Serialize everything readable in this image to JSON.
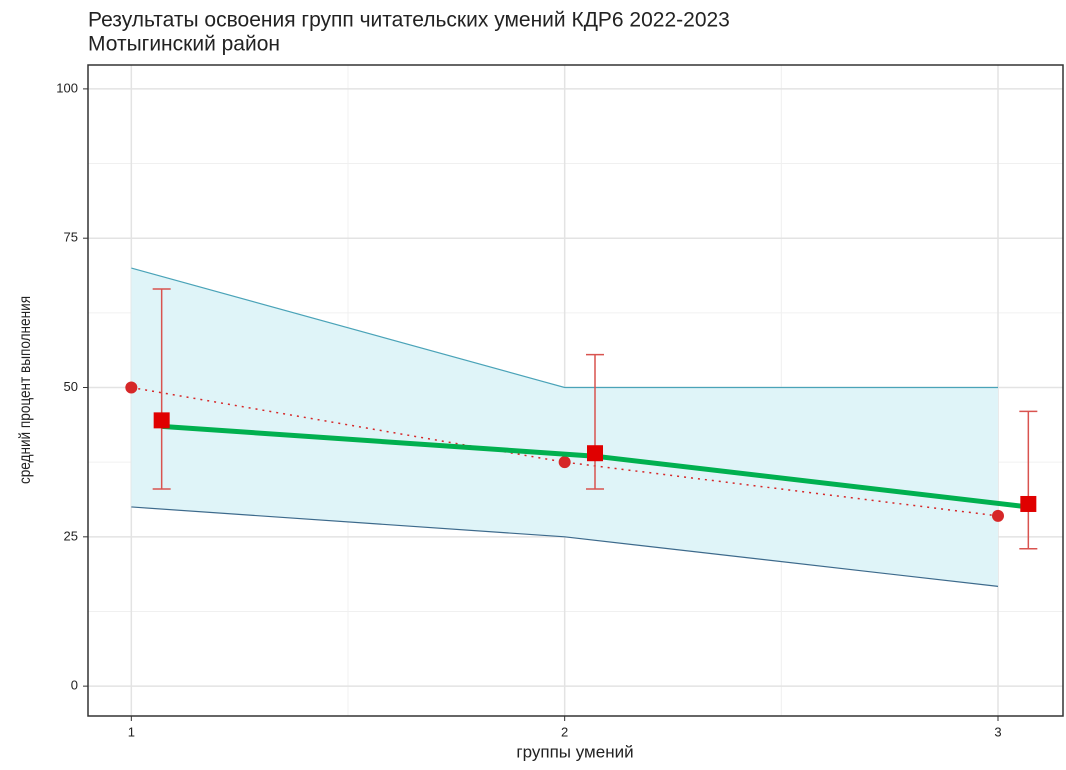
{
  "chart_data": {
    "type": "line",
    "title": "Результаты освоения групп читательских умений КДР6 2022-2023",
    "subtitle": "Мотыгинский район",
    "xlabel": "группы умений",
    "ylabel": "средний процент выполнения",
    "xlim": [
      0.9,
      3.15
    ],
    "ylim": [
      -5,
      104
    ],
    "xticks": [
      1,
      2,
      3
    ],
    "yticks": [
      0,
      25,
      50,
      75,
      100
    ],
    "xminor": [
      1.5,
      2.5
    ],
    "yminor": [
      12.5,
      37.5,
      62.5,
      87.5
    ],
    "grid": true,
    "ribbon": {
      "x": [
        1,
        2,
        3
      ],
      "upper": [
        70,
        50,
        50
      ],
      "lower": [
        30,
        25,
        16.7
      ],
      "color": "#dff4f8",
      "upper_color": "#4aa3b8",
      "lower_color": "#3d6a8c"
    },
    "series": [
      {
        "color": "#d62728",
        "line": "dotted",
        "marker": "circle",
        "x": [
          1,
          2,
          3
        ],
        "values": [
          50,
          37.5,
          28.5
        ]
      },
      {
        "color": "#00b04f",
        "line": "solid",
        "x": [
          1.07,
          2.07,
          3.07
        ],
        "values": [
          43.5,
          38.5,
          30
        ]
      },
      {
        "color": "#e00000",
        "errcolor": "#d9534f",
        "marker": "square",
        "x": [
          1.07,
          2.07,
          3.07
        ],
        "values": [
          44.5,
          39,
          30.5
        ],
        "lower": [
          33,
          33,
          23
        ],
        "upper": [
          66.5,
          55.5,
          46
        ]
      }
    ]
  }
}
